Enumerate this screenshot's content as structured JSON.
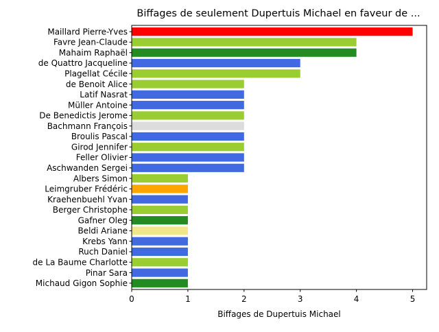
{
  "chart_data": {
    "type": "bar",
    "orientation": "horizontal",
    "title": "Biffages de seulement Dupertuis Michael en faveur de ...",
    "xlabel": "Biffages de Dupertuis Michael",
    "ylabel": "",
    "xlim": [
      0,
      5.25
    ],
    "xticks": [
      "0",
      "1",
      "2",
      "3",
      "4",
      "5"
    ],
    "grid": false,
    "legend": "none",
    "categories": [
      "Maillard Pierre-Yves",
      "Favre Jean-Claude",
      "Mahaim Raphaël",
      "de Quattro Jacqueline",
      "Plagellat Cécile",
      "de Benoit Alice",
      "Latif Nasrat",
      "Müller Antoine",
      "De Benedictis Jerome",
      "Bachmann François",
      "Broulis Pascal",
      "Girod Jennifer",
      "Feller Olivier",
      "Aschwanden Sergei",
      "Albers Simon",
      "Leimgruber Frédéric",
      "Kraehenbuehl Yvan",
      "Berger Christophe",
      "Gafner Oleg",
      "Beldi Ariane",
      "Krebs Yann",
      "Ruch Daniel",
      "de La Baume Charlotte",
      "Pinar Sara",
      "Michaud Gigon Sophie"
    ],
    "values": [
      5,
      4,
      4,
      3,
      3,
      2,
      2,
      2,
      2,
      2,
      2,
      2,
      2,
      2,
      1,
      1,
      1,
      1,
      1,
      1,
      1,
      1,
      1,
      1,
      1
    ],
    "colors": [
      "#ff0000",
      "#9acd32",
      "#228b22",
      "#4169e1",
      "#9acd32",
      "#9acd32",
      "#4169e1",
      "#4169e1",
      "#9acd32",
      "#dcdcdc",
      "#4169e1",
      "#9acd32",
      "#4169e1",
      "#4169e1",
      "#9acd32",
      "#ffa500",
      "#4169e1",
      "#9acd32",
      "#228b22",
      "#f0e68c",
      "#4169e1",
      "#4169e1",
      "#9acd32",
      "#4169e1",
      "#228b22"
    ]
  }
}
